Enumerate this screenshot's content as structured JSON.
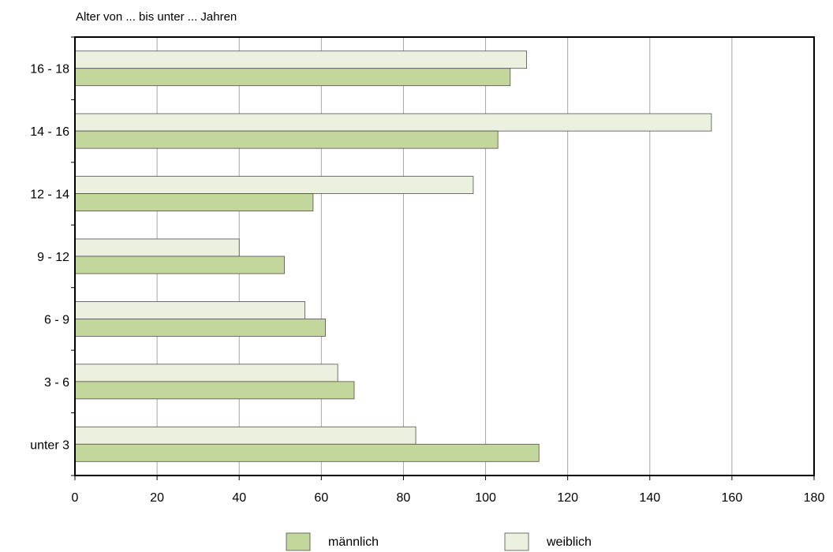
{
  "colors": {
    "maennlich": "#c3d69b",
    "weiblich": "#ebf1de",
    "bar_stroke": "#4f4f4f",
    "grid": "#a6a6a6"
  },
  "chart_data": {
    "type": "bar",
    "orientation": "horizontal",
    "title": "Alter von ... bis unter ... Jahren",
    "xlabel": "",
    "ylabel": "Alter von ... bis unter ... Jahren",
    "xlim": [
      0,
      180
    ],
    "x_ticks": [
      "0",
      "20",
      "40",
      "60",
      "80",
      "100",
      "120",
      "140",
      "160",
      "180"
    ],
    "categories": [
      "unter 3",
      "3 - 6",
      "6 - 9",
      "9 - 12",
      "12 - 14",
      "14 - 16",
      "16 - 18"
    ],
    "series": [
      {
        "name": "männlich",
        "values": [
          113,
          68,
          61,
          51,
          58,
          103,
          106
        ]
      },
      {
        "name": "weiblich",
        "values": [
          83,
          64,
          56,
          40,
          97,
          155,
          110
        ]
      }
    ],
    "grid": true,
    "legend": "bottom"
  }
}
